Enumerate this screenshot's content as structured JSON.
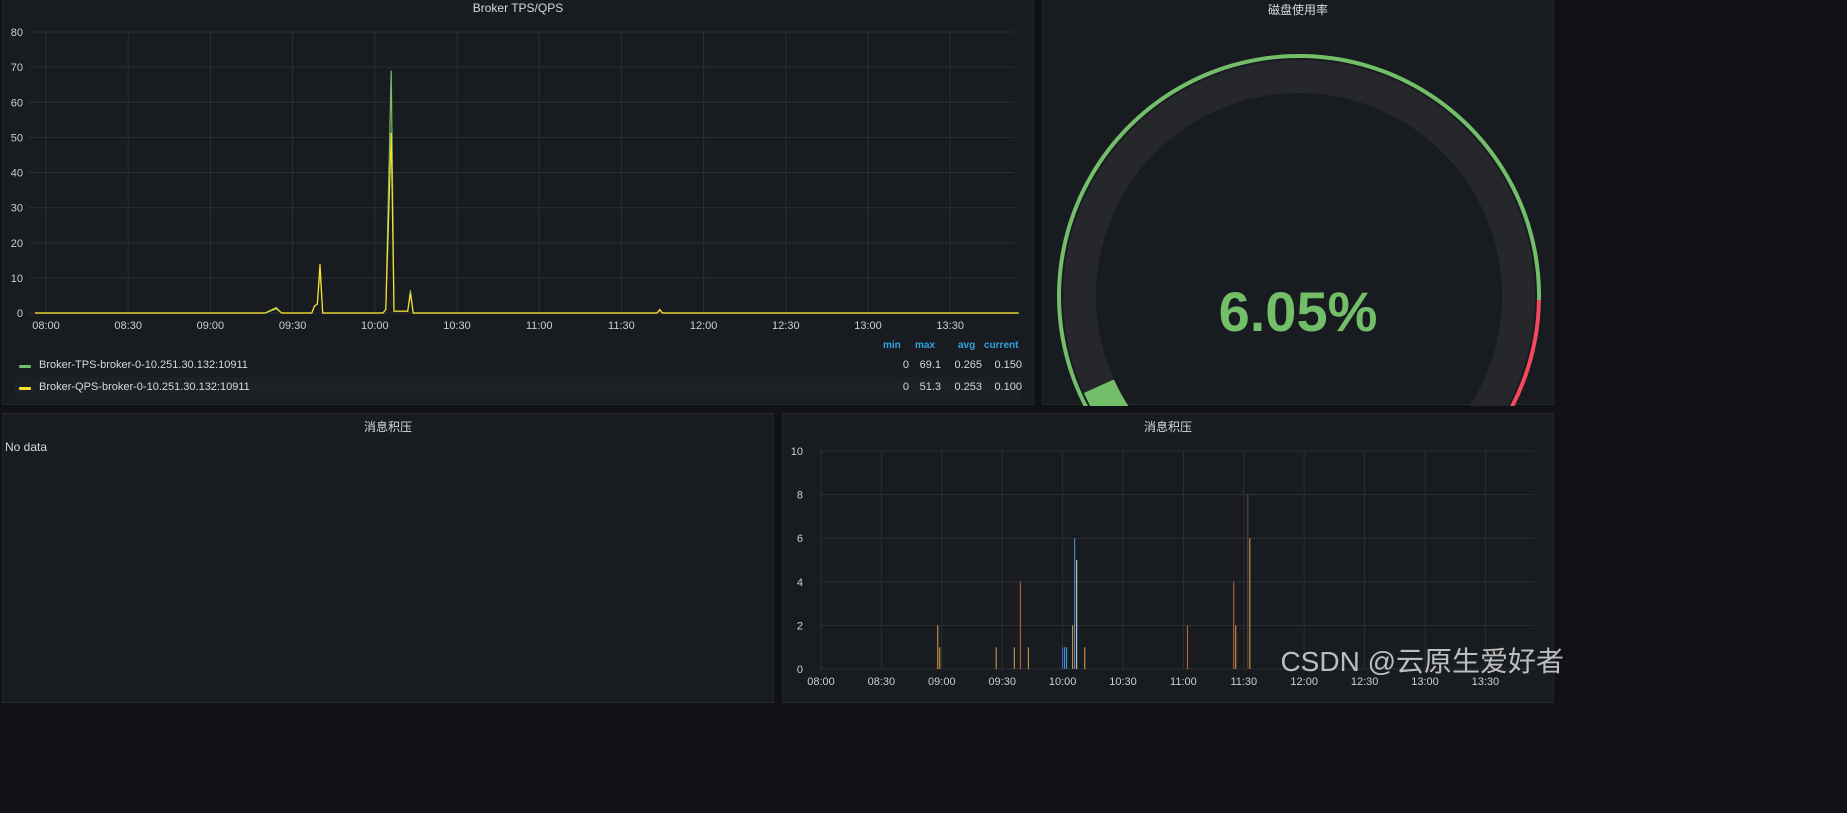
{
  "panels": {
    "tps": {
      "title": "Broker TPS/QPS",
      "legend": {
        "headers": [
          "min",
          "max",
          "avg",
          "current"
        ],
        "rows": [
          {
            "name": "Broker-TPS-broker-0-10.251.30.132:10911",
            "color": "#73bf69",
            "min": "0",
            "max": "69.1",
            "avg": "0.265",
            "current": "0.150"
          },
          {
            "name": "Broker-QPS-broker-0-10.251.30.132:10911",
            "color": "#fade2a",
            "min": "0",
            "max": "51.3",
            "avg": "0.253",
            "current": "0.100"
          }
        ]
      }
    },
    "disk": {
      "title": "磁盘使用率",
      "value_text": "6.05%",
      "value": 6.05,
      "min": 0,
      "max": 100,
      "threshold": 85,
      "colors": {
        "ok": "#73bf69",
        "bad": "#f2495c",
        "track": "#25272b"
      }
    },
    "backlog_empty": {
      "title": "消息积压",
      "message": "No data"
    },
    "backlog": {
      "title": "消息积压"
    }
  },
  "watermark": "CSDN @云原生爱好者",
  "chart_data": [
    {
      "type": "line",
      "title": "Broker TPS/QPS",
      "x_ticks": [
        "08:00",
        "08:30",
        "09:00",
        "09:30",
        "10:00",
        "10:30",
        "11:00",
        "11:30",
        "12:00",
        "12:30",
        "13:00",
        "13:30"
      ],
      "ylim": [
        0,
        80
      ],
      "y_ticks": [
        0,
        10,
        20,
        30,
        40,
        50,
        60,
        70,
        80
      ],
      "grid": true,
      "legend": "bottom",
      "series": [
        {
          "name": "Broker-TPS-broker-0-10.251.30.132:10911",
          "color": "#73bf69",
          "points": [
            [
              "07:56",
              0
            ],
            [
              "08:30",
              0
            ],
            [
              "09:20",
              0
            ],
            [
              "09:24",
              1.2
            ],
            [
              "09:26",
              0
            ],
            [
              "09:37",
              0
            ],
            [
              "09:38",
              2
            ],
            [
              "09:39",
              2.5
            ],
            [
              "09:40",
              12
            ],
            [
              "09:41",
              0
            ],
            [
              "10:03",
              0
            ],
            [
              "10:04",
              1
            ],
            [
              "10:06",
              69
            ],
            [
              "10:07",
              0.5
            ],
            [
              "10:12",
              0.5
            ],
            [
              "10:13",
              6.5
            ],
            [
              "10:14",
              0
            ],
            [
              "11:43",
              0
            ],
            [
              "11:44",
              0.8
            ],
            [
              "11:45",
              0
            ],
            [
              "13:55",
              0
            ]
          ]
        },
        {
          "name": "Broker-QPS-broker-0-10.251.30.132:10911",
          "color": "#fade2a",
          "points": [
            [
              "07:56",
              0
            ],
            [
              "08:30",
              0
            ],
            [
              "09:20",
              0
            ],
            [
              "09:24",
              1.5
            ],
            [
              "09:26",
              0
            ],
            [
              "09:37",
              0
            ],
            [
              "09:38",
              2
            ],
            [
              "09:39",
              2.5
            ],
            [
              "09:40",
              14
            ],
            [
              "09:41",
              0
            ],
            [
              "10:03",
              0
            ],
            [
              "10:04",
              1
            ],
            [
              "10:06",
              51.3
            ],
            [
              "10:07",
              0.5
            ],
            [
              "10:12",
              0.5
            ],
            [
              "10:13",
              5.5
            ],
            [
              "10:14",
              0
            ],
            [
              "11:43",
              0
            ],
            [
              "11:44",
              1
            ],
            [
              "11:45",
              0
            ],
            [
              "13:55",
              0
            ]
          ]
        }
      ]
    },
    {
      "type": "bar",
      "title": "消息积压",
      "x_ticks": [
        "08:00",
        "08:30",
        "09:00",
        "09:30",
        "10:00",
        "10:30",
        "11:00",
        "11:30",
        "12:00",
        "12:30",
        "13:00",
        "13:30"
      ],
      "ylim": [
        0,
        10
      ],
      "y_ticks": [
        0,
        2,
        4,
        6,
        8,
        10
      ],
      "grid": true,
      "bars": [
        {
          "x": "08:58",
          "v": 2,
          "color": "#e0a24a"
        },
        {
          "x": "08:59",
          "v": 1,
          "color": "#e0a24a"
        },
        {
          "x": "09:27",
          "v": 1,
          "color": "#e0a24a"
        },
        {
          "x": "09:36",
          "v": 1,
          "color": "#e0a24a"
        },
        {
          "x": "09:39",
          "v": 4,
          "color": "#c86a3a"
        },
        {
          "x": "09:43",
          "v": 1,
          "color": "#e0a24a"
        },
        {
          "x": "10:00",
          "v": 1,
          "color": "#3274d9"
        },
        {
          "x": "10:01",
          "v": 1,
          "color": "#5794f2"
        },
        {
          "x": "10:02",
          "v": 1,
          "color": "#2bb2c8"
        },
        {
          "x": "10:05",
          "v": 2,
          "color": "#e0a24a"
        },
        {
          "x": "10:06",
          "v": 6,
          "color": "#5794f2"
        },
        {
          "x": "10:07",
          "v": 5,
          "color": "#e0e0e0"
        },
        {
          "x": "10:11",
          "v": 1,
          "color": "#e0a24a"
        },
        {
          "x": "11:02",
          "v": 2,
          "color": "#c86a3a"
        },
        {
          "x": "11:25",
          "v": 4,
          "color": "#c86a3a"
        },
        {
          "x": "11:26",
          "v": 2,
          "color": "#e0a24a"
        },
        {
          "x": "11:32",
          "v": 8,
          "color": "#6b4a3a"
        },
        {
          "x": "11:33",
          "v": 6,
          "color": "#e0a24a"
        }
      ]
    }
  ]
}
